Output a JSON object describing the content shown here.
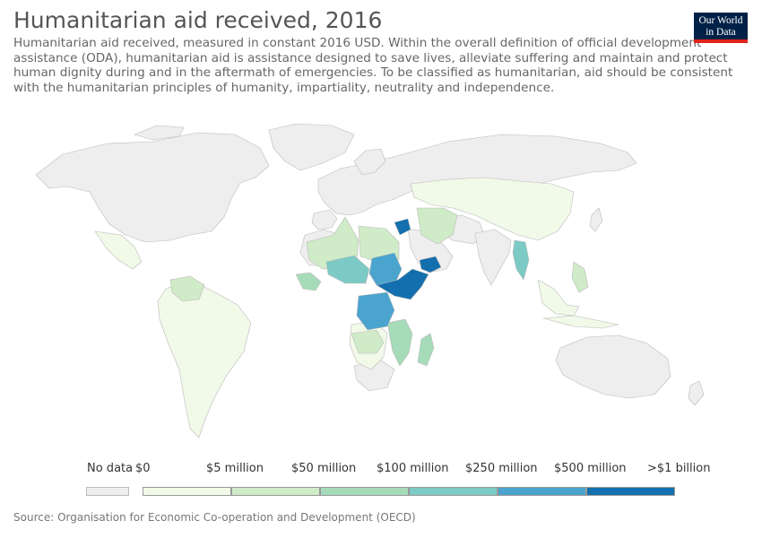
{
  "header": {
    "title": "Humanitarian aid received, 2016",
    "subtitle": "Humanitarian aid received, measured in constant 2016 USD. Within the overall definition of official development assistance (ODA), humanitarian aid is assistance designed to save lives, alleviate suffering and maintain and protect human dignity during and in the aftermath of emergencies. To be classified as humanitarian, aid should be consistent with the humanitarian principles of humanity, impartiality, neutrality and independence.",
    "logo_line1": "Our World",
    "logo_line2": "in Data"
  },
  "legend": {
    "no_data_label": "No data",
    "no_data_color": "#eeeeee",
    "bins": [
      {
        "label": "$0",
        "color": "#f1f9e8"
      },
      {
        "label": "$5 million",
        "color": "#cfebc7"
      },
      {
        "label": "$50 million",
        "color": "#a6dbba"
      },
      {
        "label": "$100 million",
        "color": "#7ccac5"
      },
      {
        "label": "$250 million",
        "color": "#4aa4cd"
      },
      {
        "label": "$500 million",
        "color": "#136fae"
      },
      {
        "label": ">$1 billion",
        "color": ""
      }
    ]
  },
  "map": {
    "ocean_color": "#ffffff",
    "border_color": "#bbbbbb"
  },
  "footer": {
    "source": "Source: Organisation for Economic Co-operation and Development (OECD)"
  }
}
